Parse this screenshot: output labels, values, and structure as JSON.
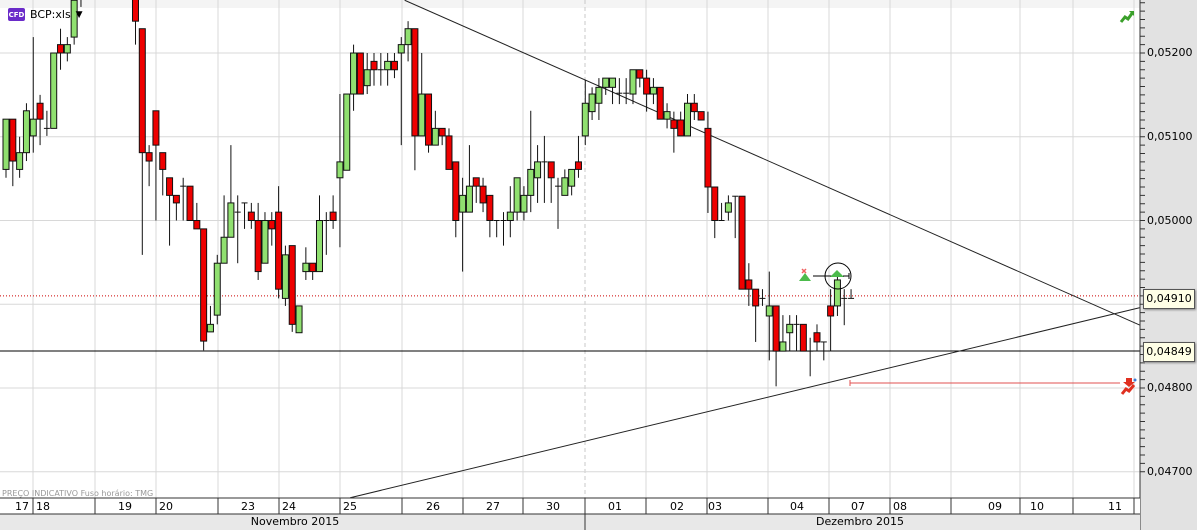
{
  "header": {
    "badge": "CFD",
    "symbol": "BCP:xls"
  },
  "footer_note": "PREÇO INDICATIVO   Fuso horário: TMG",
  "colors": {
    "up": "#90e070",
    "down": "#ee0000",
    "grid": "#d8d8d8",
    "axis_bg": "#e2e2e2",
    "alert_line": "#cc0000"
  },
  "icons": [
    "trend-up-icon",
    "alert-icon",
    "buy-signal-icon",
    "sell-signal-icon",
    "dropdown-caret-icon"
  ],
  "chart_data": {
    "type": "candlestick",
    "ylim": [
      0.0466,
      0.05263
    ],
    "y_ticks": [
      "0,05200",
      "0,05100",
      "0,05000",
      "0,04800",
      "0,04700"
    ],
    "y_tick_values": [
      0.052,
      0.051,
      0.05,
      0.048,
      0.047
    ],
    "price_labels": {
      "current": "0,04910",
      "support": "0,04849"
    },
    "price_label_values": {
      "current": 0.0491,
      "support": 0.04849
    },
    "days": [
      "17",
      "18",
      "19",
      "20",
      "23",
      "24",
      "25",
      "26",
      "27",
      "30",
      "01",
      "02",
      "03",
      "04",
      "07",
      "08",
      "09",
      "10",
      "11"
    ],
    "months": [
      "Novembro 2015",
      "Dezembro 2015"
    ],
    "grid": true,
    "trendlines": [
      {
        "from": [
          58.5,
          0.05263
        ],
        "to": [
          166.4,
          0.04875
        ]
      },
      {
        "from": [
          50.5,
          0.04669
        ],
        "to": [
          166.4,
          0.04896
        ]
      }
    ],
    "alert_level": 0.04806,
    "ohlc": [
      [
        0.05061,
        0.05121,
        0.05051,
        0.05121
      ],
      [
        0.05121,
        0.05121,
        0.05041,
        0.05071
      ],
      [
        0.05061,
        0.051,
        0.05051,
        0.05081
      ],
      [
        0.05081,
        0.0514,
        0.05071,
        0.05131
      ],
      [
        0.05101,
        0.05219,
        0.05081,
        0.05121
      ],
      [
        0.0514,
        0.0515,
        0.0509,
        0.05121
      ],
      [
        0.0511,
        0.05131,
        0.05101,
        0.0511
      ],
      [
        0.0511,
        0.052,
        0.0511,
        0.052
      ],
      [
        0.0521,
        0.05229,
        0.0518,
        0.052
      ],
      [
        0.052,
        0.05219,
        0.0519,
        0.0521
      ],
      [
        0.05219,
        0.0527,
        0.0521,
        0.05263
      ],
      [
        0.05265,
        0.0528,
        0.05255,
        0.05275
      ],
      null,
      null,
      null,
      null,
      null,
      null,
      null,
      [
        0.05269,
        0.05275,
        0.0521,
        0.05238
      ],
      [
        0.05229,
        0.05229,
        0.04959,
        0.05081
      ],
      [
        0.05081,
        0.0509,
        0.05041,
        0.05071
      ],
      [
        0.05131,
        0.05131,
        0.05,
        0.0509
      ],
      [
        0.05081,
        0.05081,
        0.0503,
        0.05061
      ],
      [
        0.05051,
        0.05051,
        0.0497,
        0.0503
      ],
      [
        0.0503,
        0.0503,
        0.05,
        0.05021
      ],
      [
        0.05041,
        0.05051,
        0.05,
        0.05041
      ],
      [
        0.05041,
        0.05041,
        0.05,
        0.05
      ],
      [
        0.05,
        0.05021,
        0.0499,
        0.0499
      ],
      [
        0.0499,
        0.0499,
        0.04845,
        0.04856
      ],
      [
        0.04867,
        0.04898,
        0.04867,
        0.04876
      ],
      [
        0.04887,
        0.04959,
        0.04876,
        0.04949
      ],
      [
        0.04949,
        0.0503,
        0.04949,
        0.0498
      ],
      [
        0.0498,
        0.0509,
        0.0498,
        0.05021
      ],
      [
        0.0501,
        0.0503,
        0.04949,
        0.0501
      ],
      [
        0.05021,
        0.05021,
        0.0499,
        0.05021
      ],
      [
        0.0501,
        0.05021,
        0.0499,
        0.05
      ],
      [
        0.05,
        0.05021,
        0.04929,
        0.04939
      ],
      [
        0.04949,
        0.0501,
        0.04949,
        0.05
      ],
      [
        0.05,
        0.0501,
        0.0497,
        0.0499
      ],
      [
        0.0501,
        0.05041,
        0.04907,
        0.04918
      ],
      [
        0.04907,
        0.0497,
        0.04898,
        0.04959
      ],
      [
        0.0497,
        0.0497,
        0.04867,
        0.04876
      ],
      [
        0.04866,
        0.04898,
        0.04866,
        0.04898
      ],
      [
        0.04939,
        0.04968,
        0.04929,
        0.04949
      ],
      [
        0.04949,
        0.04949,
        0.04929,
        0.04939
      ],
      [
        0.04939,
        0.0503,
        0.04939,
        0.05
      ],
      [
        0.05,
        0.0501,
        0.04959,
        0.05
      ],
      [
        0.0501,
        0.0503,
        0.0499,
        0.05
      ],
      [
        0.05051,
        0.05151,
        0.04968,
        0.0507
      ],
      [
        0.0506,
        0.05151,
        0.0506,
        0.05151
      ],
      [
        0.05151,
        0.0521,
        0.05131,
        0.052
      ],
      [
        0.052,
        0.052,
        0.05151,
        0.05151
      ],
      [
        0.05161,
        0.052,
        0.05151,
        0.0518
      ],
      [
        0.0519,
        0.052,
        0.05161,
        0.0518
      ],
      [
        0.0518,
        0.052,
        0.05161,
        0.0518
      ],
      [
        0.0518,
        0.052,
        0.05161,
        0.0519
      ],
      [
        0.0519,
        0.052,
        0.0517,
        0.0518
      ],
      [
        0.052,
        0.05219,
        0.0509,
        0.0521
      ],
      [
        0.0521,
        0.05238,
        0.0519,
        0.05229
      ],
      [
        0.05229,
        0.05229,
        0.0506,
        0.05101
      ],
      [
        0.05101,
        0.052,
        0.05101,
        0.05151
      ],
      [
        0.05151,
        0.05151,
        0.05081,
        0.0509
      ],
      [
        0.0509,
        0.05131,
        0.0509,
        0.0511
      ],
      [
        0.0511,
        0.0511,
        0.0509,
        0.05101
      ],
      [
        0.05101,
        0.0511,
        0.05061,
        0.05061
      ],
      [
        0.0507,
        0.0507,
        0.0498,
        0.05
      ],
      [
        0.0501,
        0.05051,
        0.04939,
        0.0503
      ],
      [
        0.0501,
        0.0509,
        0.0501,
        0.05041
      ],
      [
        0.05051,
        0.05051,
        0.05021,
        0.05041
      ],
      [
        0.05041,
        0.05051,
        0.0501,
        0.05021
      ],
      [
        0.0503,
        0.0503,
        0.0498,
        0.05
      ],
      [
        0.05,
        0.05,
        0.0498,
        0.05
      ],
      [
        0.05,
        0.0501,
        0.0497,
        0.05
      ],
      [
        0.05,
        0.05041,
        0.0498,
        0.0501
      ],
      [
        0.0501,
        0.05051,
        0.05,
        0.05051
      ],
      [
        0.0501,
        0.05041,
        0.05,
        0.0503
      ],
      [
        0.0503,
        0.05131,
        0.0501,
        0.05061
      ],
      [
        0.05051,
        0.0509,
        0.05021,
        0.0507
      ],
      [
        0.0507,
        0.05101,
        0.05021,
        0.0507
      ],
      [
        0.0507,
        0.0507,
        0.05021,
        0.05051
      ],
      [
        0.05041,
        0.05051,
        0.0499,
        0.05041
      ],
      [
        0.0503,
        0.05061,
        0.0503,
        0.05051
      ],
      [
        0.05041,
        0.05061,
        0.0503,
        0.05061
      ],
      [
        0.0507,
        0.05101,
        0.05051,
        0.05061
      ],
      [
        0.05101,
        0.05168,
        0.0509,
        0.0514
      ],
      [
        0.0513,
        0.05159,
        0.0512,
        0.05151
      ],
      [
        0.0514,
        0.0517,
        0.0512,
        0.05159
      ],
      [
        0.05159,
        0.0517,
        0.0515,
        0.0517
      ],
      [
        0.05159,
        0.0517,
        0.05139,
        0.0517
      ],
      [
        0.05152,
        0.0517,
        0.05139,
        0.05152
      ],
      [
        0.05152,
        0.0517,
        0.05139,
        0.05152
      ],
      [
        0.05151,
        0.0518,
        0.05139,
        0.0518
      ],
      [
        0.0518,
        0.0518,
        0.05159,
        0.0517
      ],
      [
        0.0517,
        0.0518,
        0.0513,
        0.05151
      ],
      [
        0.05151,
        0.0517,
        0.05139,
        0.05159
      ],
      [
        0.05159,
        0.05159,
        0.05121,
        0.05121
      ],
      [
        0.05121,
        0.0514,
        0.0511,
        0.0513
      ],
      [
        0.0512,
        0.0513,
        0.05081,
        0.0511
      ],
      [
        0.0512,
        0.0513,
        0.05101,
        0.05101
      ],
      [
        0.05101,
        0.05151,
        0.05101,
        0.0514
      ],
      [
        0.0514,
        0.05151,
        0.0512,
        0.0513
      ],
      [
        0.0513,
        0.0513,
        0.0512,
        0.0512
      ],
      [
        0.0511,
        0.0513,
        0.05009,
        0.0504
      ],
      [
        0.0504,
        0.0504,
        0.04979,
        0.05
      ],
      [
        0.05,
        0.05021,
        0.05,
        0.05
      ],
      [
        0.0501,
        0.0503,
        0.05,
        0.05021
      ],
      [
        0.05029,
        0.05029,
        0.04979,
        0.05029
      ],
      [
        0.05029,
        0.05029,
        0.04918,
        0.04918
      ],
      [
        0.04929,
        0.04949,
        0.04898,
        0.04918
      ],
      [
        0.04918,
        0.04918,
        0.04855,
        0.04898
      ],
      [
        0.04907,
        0.04918,
        0.04898,
        0.04907
      ],
      [
        0.04886,
        0.04939,
        0.04833,
        0.04898
      ],
      [
        0.04898,
        0.04898,
        0.04802,
        0.04844
      ],
      [
        0.04844,
        0.04887,
        0.04844,
        0.04855
      ],
      [
        0.04866,
        0.04887,
        0.04844,
        0.04876
      ],
      [
        0.04876,
        0.04887,
        0.04844,
        0.04876
      ],
      [
        0.04876,
        0.04876,
        0.04844,
        0.04844
      ],
      [
        0.04844,
        0.0486,
        0.04814,
        0.04844
      ],
      [
        0.04866,
        0.04876,
        0.04844,
        0.04855
      ],
      [
        0.04855,
        0.04855,
        0.04833,
        0.04855
      ],
      [
        0.04898,
        0.04918,
        0.04844,
        0.04886
      ],
      [
        0.04898,
        0.04939,
        0.04886,
        0.04929
      ],
      [
        0.04907,
        0.04918,
        0.04875,
        0.04907
      ],
      [
        0.04907,
        0.04918,
        0.04907,
        0.04907
      ]
    ]
  }
}
